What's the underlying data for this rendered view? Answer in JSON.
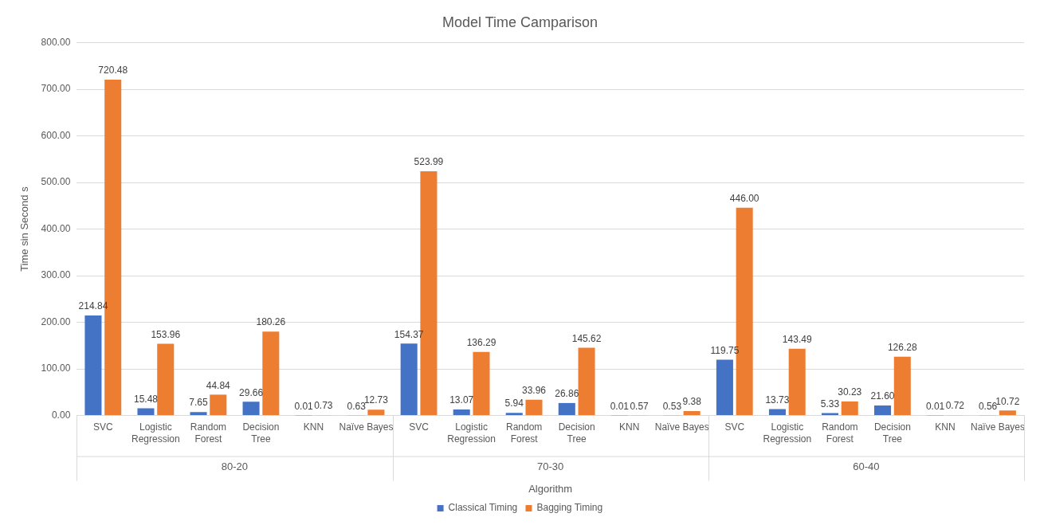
{
  "chart_data": {
    "type": "bar",
    "title": "Model Time Camparison",
    "xlabel": "Algorithm",
    "ylabel": "Time sin Second s",
    "categories": [
      "SVC",
      "Logistic Regression",
      "Random Forest",
      "Decision Tree",
      "KNN",
      "Naïve Bayes",
      "SVC",
      "Logistic Regression",
      "Random Forest",
      "Decision Tree",
      "KNN",
      "Naïve Bayes",
      "SVC",
      "Logistic Regression",
      "Random Forest",
      "Decision Tree",
      "KNN",
      "Naïve Bayes"
    ],
    "annotations": [
      "80-20",
      "70-30",
      "60-40"
    ],
    "series": [
      {
        "name": "Classical Timing",
        "color": "#4472c4",
        "values": [
          214.84,
          15.48,
          7.65,
          29.66,
          0.01,
          0.63,
          154.37,
          13.07,
          5.94,
          26.86,
          0.01,
          0.53,
          119.75,
          13.73,
          5.33,
          21.6,
          0.01,
          0.56
        ],
        "value_labels": [
          "214.84",
          "15.48",
          "7.65",
          "29.66",
          "0.01",
          "0.63",
          "154.37",
          "13.07",
          "5.94",
          "26.86",
          "0.01",
          "0.53",
          "119.75",
          "13.73",
          "5.33",
          "21.60",
          "0.01",
          "0.56"
        ]
      },
      {
        "name": "Bagging Timing",
        "color": "#ed7d31",
        "values": [
          720.48,
          153.96,
          44.84,
          180.26,
          0.73,
          12.73,
          523.99,
          136.29,
          33.96,
          145.62,
          0.57,
          9.38,
          446.0,
          143.49,
          30.23,
          126.28,
          0.72,
          10.72
        ],
        "value_labels": [
          "720.48",
          "153.96",
          "44.84",
          "180.26",
          "0.73",
          "12.73",
          "523.99",
          "136.29",
          "33.96",
          "145.62",
          "0.57",
          "9.38",
          "446.00",
          "143.49",
          "30.23",
          "126.28",
          "0.72",
          "10.72"
        ]
      }
    ],
    "ylim": [
      0,
      800
    ],
    "yticks": [
      {
        "value": 0,
        "label": "0.00"
      },
      {
        "value": 100,
        "label": "100.00"
      },
      {
        "value": 200,
        "label": "200.00"
      },
      {
        "value": 300,
        "label": "300.00"
      },
      {
        "value": 400,
        "label": "400.00"
      },
      {
        "value": 500,
        "label": "500.00"
      },
      {
        "value": 600,
        "label": "600.00"
      },
      {
        "value": 700,
        "label": "700.00"
      },
      {
        "value": 800,
        "label": "800.00"
      }
    ],
    "grid": "y",
    "legend": "bottom"
  }
}
